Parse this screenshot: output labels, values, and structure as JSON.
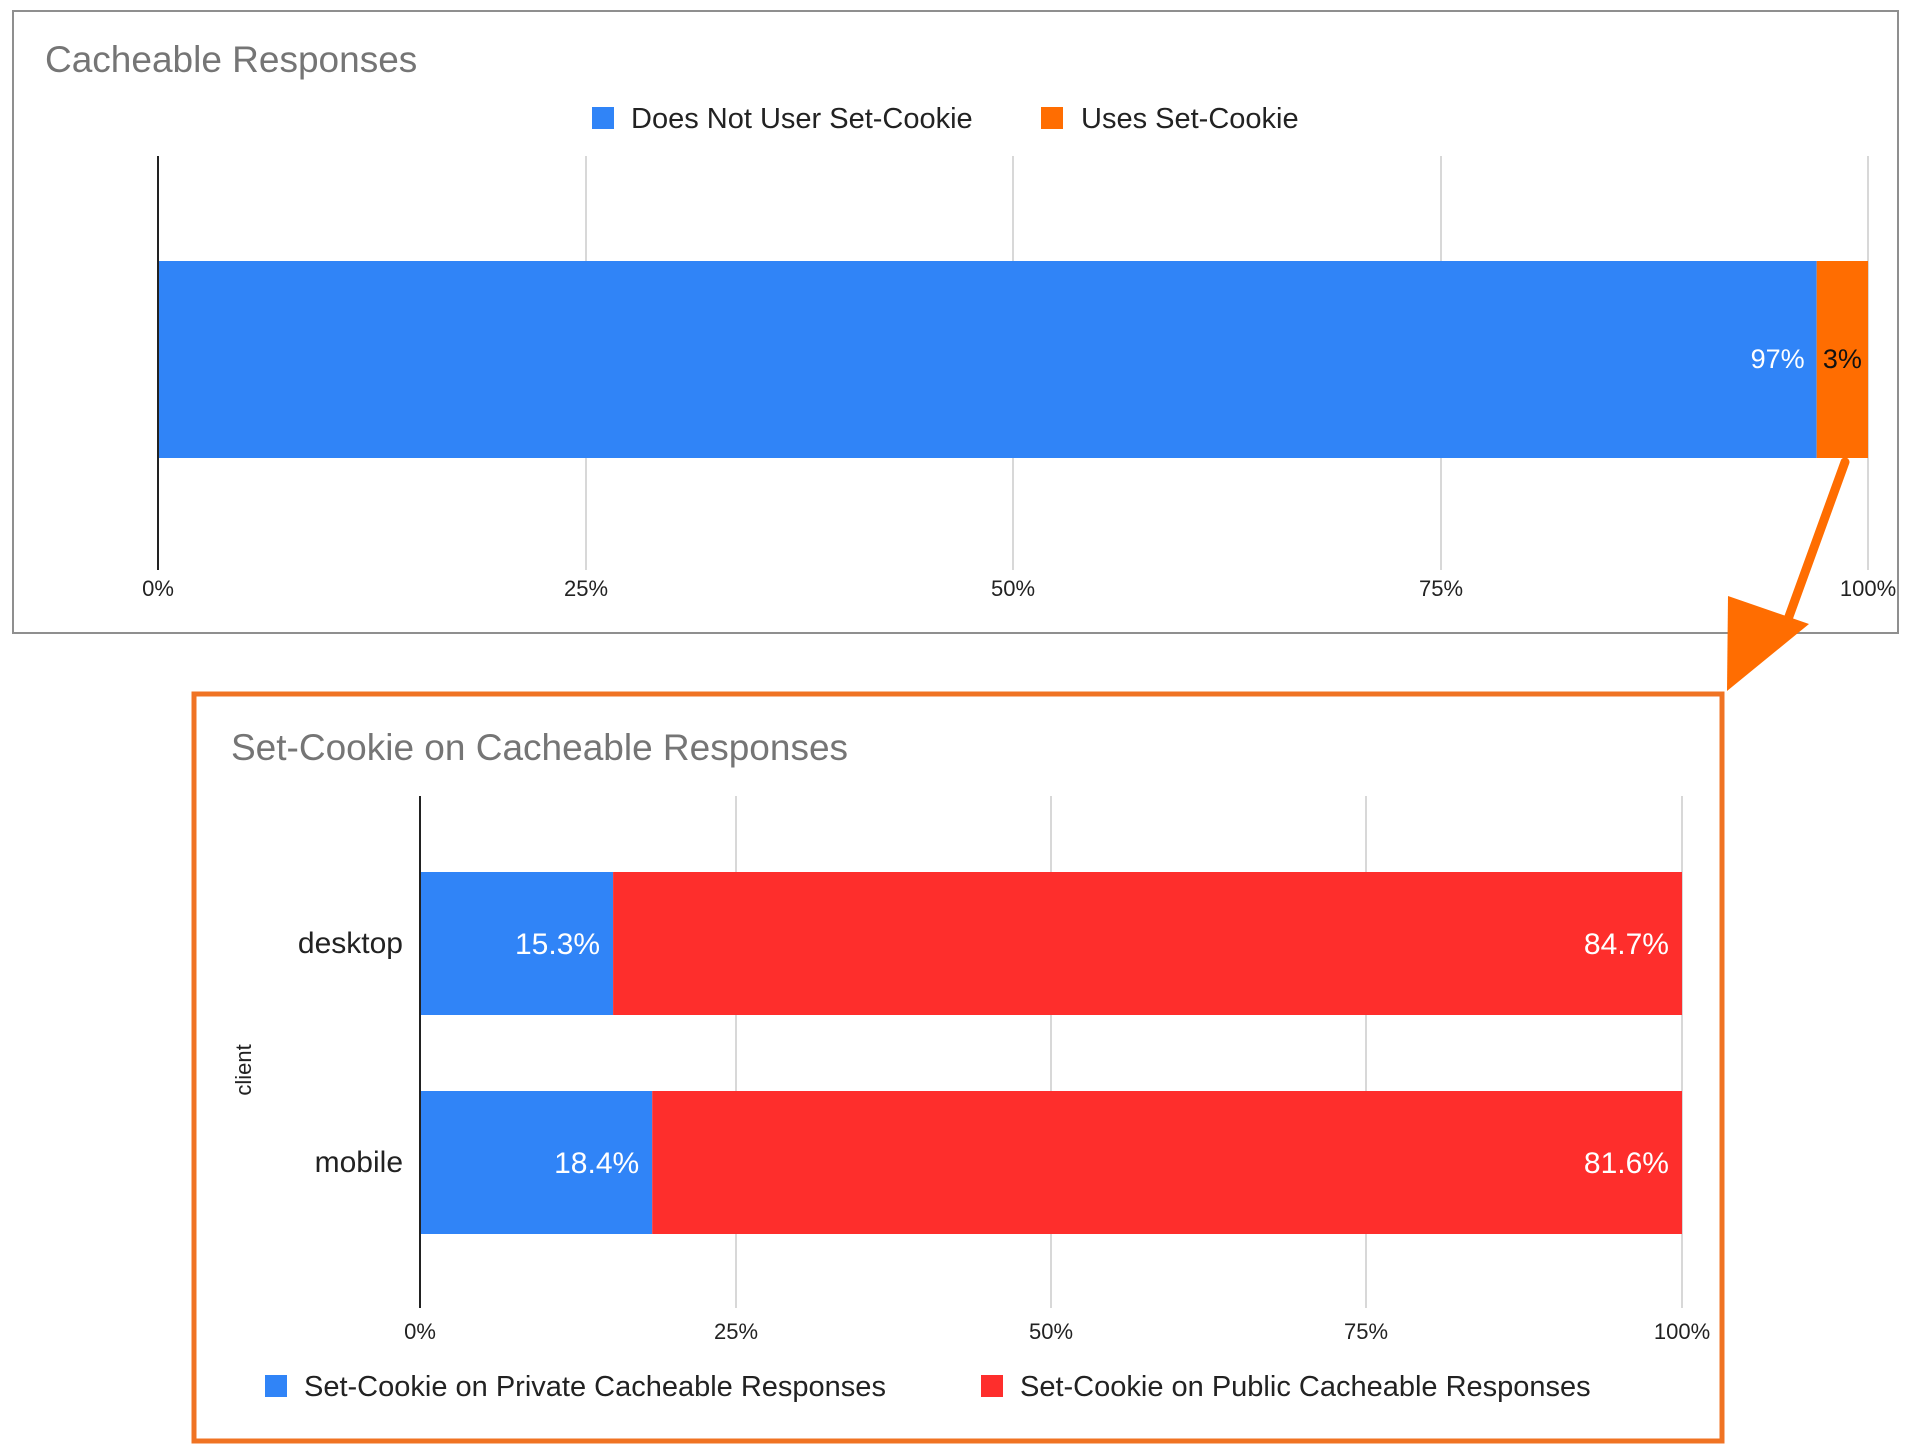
{
  "colors": {
    "blue": "#3084f7",
    "orange": "#ff6d01",
    "red": "#fe2e2c",
    "frame": "#8f8f8f",
    "highlight_frame": "#f07323",
    "arrow": "#ff6d01",
    "grid": "#cccccc",
    "title_text": "#757575",
    "axis_text": "#222222"
  },
  "chart_data": [
    {
      "type": "bar",
      "orientation": "horizontal",
      "stacked": true,
      "title": "Cacheable Responses",
      "xlim": [
        0,
        100
      ],
      "x_ticks": [
        "0%",
        "25%",
        "50%",
        "75%",
        "100%"
      ],
      "grid": true,
      "legend_position": "top",
      "categories": [
        ""
      ],
      "series": [
        {
          "name": "Does Not User Set-Cookie",
          "values": [
            97
          ],
          "labels": [
            "97%"
          ],
          "color": "#3084f7",
          "label_color": "#ffffff"
        },
        {
          "name": "Uses Set-Cookie",
          "values": [
            3
          ],
          "labels": [
            "3%"
          ],
          "color": "#ff6d01",
          "label_color": "#111111"
        }
      ]
    },
    {
      "type": "bar",
      "orientation": "horizontal",
      "stacked": true,
      "title": "Set-Cookie on Cacheable Responses",
      "ylabel": "client",
      "xlim": [
        0,
        100
      ],
      "x_ticks": [
        "0%",
        "25%",
        "50%",
        "75%",
        "100%"
      ],
      "grid": true,
      "legend_position": "bottom",
      "categories": [
        "desktop",
        "mobile"
      ],
      "series": [
        {
          "name": "Set-Cookie on Private Cacheable Responses",
          "values": [
            15.3,
            18.4
          ],
          "labels": [
            "15.3%",
            "18.4%"
          ],
          "color": "#3084f7",
          "label_color": "#ffffff"
        },
        {
          "name": "Set-Cookie on Public Cacheable Responses",
          "values": [
            84.7,
            81.6
          ],
          "labels": [
            "84.7%",
            "81.6%"
          ],
          "color": "#fe2e2c",
          "label_color": "#ffffff"
        }
      ]
    }
  ]
}
